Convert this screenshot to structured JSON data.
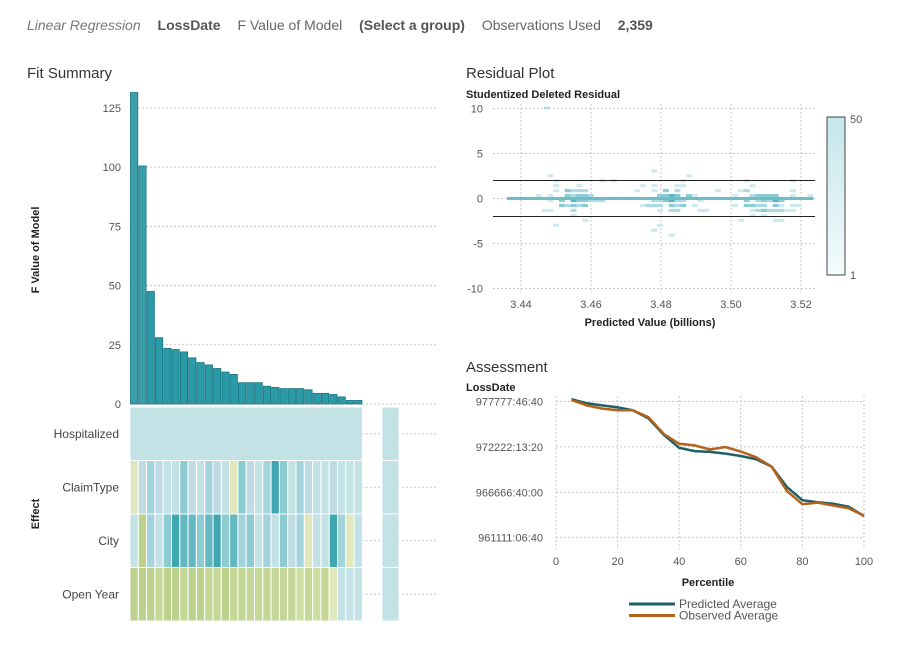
{
  "header": {
    "analysis": "Linear Regression",
    "response": "LossDate",
    "statistic": "F Value of Model",
    "group": "(Select a group)",
    "obs_label": "Observations Used",
    "obs_value": "2,359"
  },
  "fit_summary": {
    "title": "Fit Summary",
    "ylabel": "F Value of Model",
    "effect_label": "Effect",
    "chart_data": {
      "type": "bar",
      "ylim": [
        0,
        133
      ],
      "yticks": [
        0,
        25,
        50,
        75,
        100,
        125
      ],
      "values": [
        131.5,
        100.5,
        47.5,
        28,
        23.5,
        23,
        22,
        19.5,
        17.5,
        16.5,
        15,
        13.5,
        12.5,
        9,
        9,
        9,
        7.5,
        7,
        6.5,
        6.5,
        6.5,
        6,
        4.5,
        4.5,
        4,
        3,
        1.5,
        1.5
      ]
    },
    "effects": [
      "Hospitalized",
      "ClaimType",
      "City",
      "Open Year"
    ],
    "heatmap": {
      "Hospitalized": [
        "#c2e2e6"
      ],
      "ClaimType": [
        "#e0e7bc",
        "#bedbe3",
        "#a3d3db",
        "#bedbe3",
        "#c2e2e6",
        "#c2e2e6",
        "#8ccbd2",
        "#bedbe3",
        "#c2e2e6",
        "#a3d3db",
        "#bedbe3",
        "#c2e2e6",
        "#e0e7bc",
        "#8ccbd2",
        "#bedbe3",
        "#c2e2e6",
        "#a3d3db",
        "#3ea7b2",
        "#8ccbd2",
        "#c2e2e6",
        "#a3d3db",
        "#bedbe3",
        "#c2e2e6",
        "#c2e2e6",
        "#bedbe3",
        "#c2e2e6",
        "#c2e2e6",
        "#c2e2e6"
      ],
      "City": [
        "#c2e2e6",
        "#bcd28c",
        "#a3d3db",
        "#c2e2e6",
        "#8ccbd2",
        "#3ea7b2",
        "#63b8c2",
        "#63b8c2",
        "#8ccbd2",
        "#63b8c2",
        "#3ea7b2",
        "#8ccbd2",
        "#63b8c2",
        "#a3d3db",
        "#8ccbd2",
        "#c2e2e6",
        "#a3d3db",
        "#c2e2e6",
        "#8ccbd2",
        "#bedbe3",
        "#a3d3db",
        "#e0e7bc",
        "#c2e2e6",
        "#c2e2e6",
        "#3ea7b2",
        "#a3d3db",
        "#e0e7bc",
        "#c2e2e6"
      ],
      "Open Year": [
        "#bcd28c",
        "#bcd28c",
        "#bcd28c",
        "#c4d796",
        "#bcd28c",
        "#bcd28c",
        "#c4d796",
        "#bcd28c",
        "#bcd28c",
        "#c4d796",
        "#c4d796",
        "#bcd28c",
        "#c4d796",
        "#c4d796",
        "#c4d796",
        "#c4d796",
        "#c4d796",
        "#c4d796",
        "#c4d796",
        "#c4d796",
        "#cddfa2",
        "#c4d796",
        "#cddfa2",
        "#c4d796",
        "#e0e7bc",
        "#c2e2e6",
        "#c2e2e6",
        "#c2e2e6"
      ],
      "extra_column_color": "#c2e2e6"
    }
  },
  "residual_plot": {
    "title": "Residual Plot",
    "ylabel": "Studentized Deleted Residual",
    "xlabel": "Predicted Value (billions)",
    "chart_data": {
      "type": "heatmap",
      "xlim": [
        3.432,
        3.524
      ],
      "ylim": [
        -10.5,
        10.5
      ],
      "xticks": [
        "3.44",
        "3.46",
        "3.48",
        "3.50",
        "3.52"
      ],
      "xtick_values": [
        3.44,
        3.46,
        3.48,
        3.5,
        3.52
      ],
      "yticks": [
        -10,
        -5,
        0,
        5,
        10
      ],
      "reference_lines": [
        -2,
        2
      ],
      "legend_max": "50",
      "legend_min": "1"
    }
  },
  "assessment": {
    "title": "Assessment",
    "ylabel": "LossDate",
    "xlabel": "Percentile",
    "chart_data": {
      "type": "line",
      "xlim": [
        0,
        100
      ],
      "xticks": [
        0,
        20,
        40,
        60,
        80,
        100
      ],
      "yticks": [
        "977777:46:40",
        "972222:13:20",
        "966666:40:00",
        "961111:06:40"
      ],
      "x": [
        5,
        10,
        15,
        20,
        25,
        30,
        35,
        40,
        45,
        50,
        55,
        60,
        65,
        70,
        75,
        80,
        85,
        90,
        95,
        100
      ],
      "series": [
        {
          "name": "Predicted Average",
          "color": "#1f5f66",
          "values": [
            978050,
            977550,
            977300,
            977050,
            976700,
            975700,
            973700,
            972100,
            971700,
            971600,
            971400,
            971100,
            970700,
            969800,
            967300,
            965700,
            965450,
            965250,
            964900,
            963750
          ]
        },
        {
          "name": "Observed Average",
          "color": "#b5621b",
          "values": [
            977950,
            977300,
            976900,
            976700,
            976700,
            975850,
            973800,
            972600,
            972400,
            971900,
            972200,
            971650,
            970950,
            969800,
            966800,
            965200,
            965400,
            965050,
            964700,
            963800
          ]
        }
      ]
    }
  }
}
